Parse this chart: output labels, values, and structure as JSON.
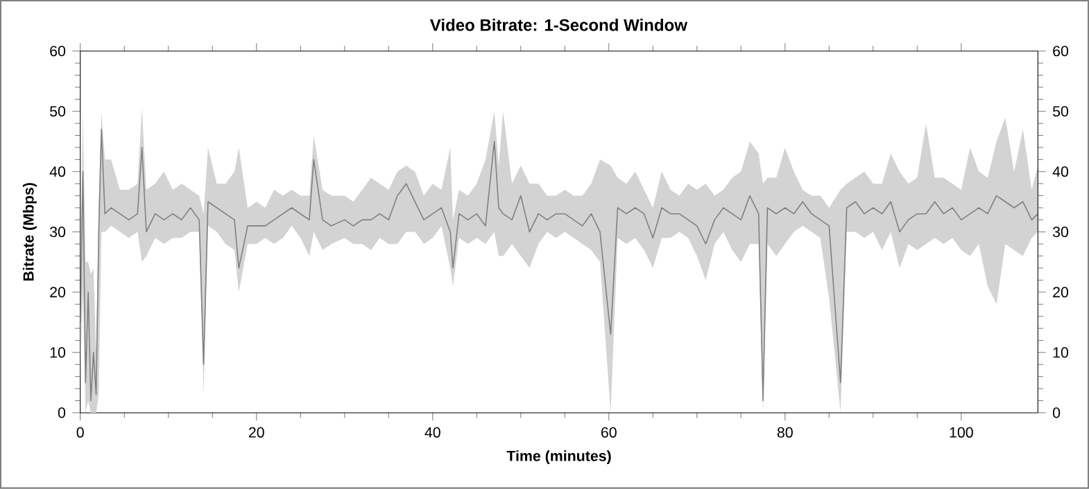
{
  "chart_data": {
    "type": "line",
    "title": "Video Bitrate: 1-Second Window",
    "xlabel": "Time (minutes)",
    "ylabel": "Bitrate (Mbps)",
    "xlim": [
      0,
      108.7
    ],
    "xticks": [
      0,
      20,
      40,
      60,
      80,
      100
    ],
    "ylim": [
      0,
      60
    ],
    "yticks": [
      0,
      10,
      20,
      30,
      40,
      50,
      60
    ],
    "y2lim": [
      0,
      60
    ],
    "y2ticks": [
      0,
      10,
      20,
      30,
      40,
      50,
      60
    ],
    "series": [
      {
        "color": "#808080",
        "x": [
          0.0,
          0.3,
          0.6,
          0.9,
          1.2,
          1.5,
          1.8,
          2.1,
          2.4,
          2.8,
          3.5,
          4.5,
          5.5,
          6.5,
          7.0,
          7.5,
          8.5,
          9.5,
          10.5,
          11.5,
          12.5,
          13.5,
          14.0,
          14.5,
          15.5,
          16.5,
          17.5,
          18.0,
          19.0,
          20.0,
          21.0,
          22.0,
          23.0,
          24.0,
          25.0,
          26.0,
          26.5,
          27.5,
          28.5,
          30.0,
          31.0,
          32.0,
          33.0,
          34.0,
          35.0,
          36.0,
          37.0,
          38.0,
          39.0,
          40.0,
          41.0,
          42.0,
          42.3,
          43.0,
          44.0,
          45.0,
          46.0,
          47.0,
          47.5,
          48.0,
          49.0,
          50.0,
          51.0,
          52.0,
          53.0,
          54.0,
          55.0,
          56.0,
          57.0,
          58.0,
          59.0,
          60.2,
          61.0,
          62.0,
          63.0,
          64.0,
          65.0,
          66.0,
          67.0,
          68.0,
          69.0,
          70.0,
          71.0,
          72.0,
          73.0,
          74.0,
          75.0,
          76.0,
          77.0,
          77.5,
          78.0,
          79.0,
          80.0,
          81.0,
          82.0,
          83.0,
          84.0,
          85.0,
          86.3,
          87.0,
          88.0,
          89.0,
          90.0,
          91.0,
          92.0,
          93.0,
          94.0,
          95.0,
          96.0,
          97.0,
          98.0,
          99.0,
          100.0,
          101.0,
          102.0,
          103.0,
          104.0,
          105.0,
          106.0,
          107.0,
          108.0,
          108.7
        ],
        "values": [
          15,
          40,
          5,
          20,
          2,
          10,
          3,
          30,
          47,
          33,
          34,
          33,
          32,
          33,
          44,
          30,
          33,
          32,
          33,
          32,
          34,
          32,
          8,
          35,
          34,
          33,
          32,
          24,
          31,
          31,
          31,
          32,
          33,
          34,
          33,
          32,
          42,
          32,
          31,
          32,
          31,
          32,
          32,
          33,
          32,
          36,
          38,
          35,
          32,
          33,
          34,
          30,
          24,
          33,
          32,
          33,
          31,
          45,
          34,
          33,
          32,
          36,
          30,
          33,
          32,
          33,
          33,
          32,
          31,
          33,
          30,
          13,
          34,
          33,
          34,
          33,
          29,
          34,
          33,
          33,
          32,
          31,
          28,
          32,
          34,
          33,
          32,
          36,
          33,
          2,
          34,
          33,
          34,
          33,
          35,
          33,
          32,
          31,
          5,
          34,
          35,
          33,
          34,
          33,
          35,
          30,
          32,
          33,
          33,
          35,
          33,
          34,
          32,
          33,
          34,
          33,
          36,
          35,
          34,
          35,
          32,
          33
        ],
        "lower": [
          5,
          20,
          0,
          2,
          0,
          0,
          0,
          3,
          30,
          30,
          31,
          30,
          29,
          30,
          25,
          26,
          29,
          28,
          29,
          29,
          30,
          30,
          3,
          31,
          30,
          28,
          27,
          20,
          28,
          28,
          29,
          28,
          29,
          31,
          29,
          26,
          30,
          27,
          28,
          29,
          28,
          28,
          27,
          29,
          28,
          28,
          30,
          30,
          28,
          29,
          31,
          24,
          21,
          29,
          28,
          29,
          28,
          30,
          26,
          26,
          28,
          26,
          24,
          28,
          30,
          29,
          30,
          29,
          28,
          27,
          25,
          0,
          29,
          28,
          29,
          27,
          24,
          29,
          29,
          30,
          29,
          26,
          22,
          28,
          30,
          27,
          25,
          28,
          28,
          0,
          28,
          26,
          28,
          30,
          31,
          30,
          29,
          19,
          0,
          30,
          30,
          29,
          30,
          27,
          30,
          24,
          28,
          27,
          28,
          29,
          28,
          29,
          27,
          26,
          28,
          21,
          18,
          28,
          27,
          26,
          29,
          30
        ],
        "upper": [
          22,
          50,
          25,
          25,
          23,
          24,
          10,
          35,
          50,
          42,
          42,
          37,
          37,
          38,
          50.5,
          37,
          38,
          40,
          37,
          38,
          37,
          36,
          33,
          44,
          38,
          38,
          40,
          44,
          34,
          35,
          34,
          37,
          36,
          37,
          36,
          36,
          46,
          37,
          36,
          36,
          35,
          37,
          39,
          38,
          37,
          40,
          41,
          40,
          36,
          38,
          37,
          44,
          32,
          37,
          36,
          38,
          42,
          50,
          41,
          50,
          38,
          41,
          38,
          38,
          36,
          36,
          37,
          36,
          36,
          38,
          42,
          41,
          39,
          38,
          40,
          37,
          34,
          40,
          37,
          36,
          38,
          37,
          38,
          36,
          37,
          39,
          40,
          45,
          43,
          38,
          39,
          39,
          44,
          40,
          37,
          36,
          36,
          34,
          37,
          38,
          39,
          40,
          38,
          38,
          43,
          40,
          38,
          39,
          48,
          39,
          39,
          38,
          37,
          44,
          40,
          39,
          45,
          49,
          40,
          47,
          37,
          41
        ]
      }
    ]
  }
}
